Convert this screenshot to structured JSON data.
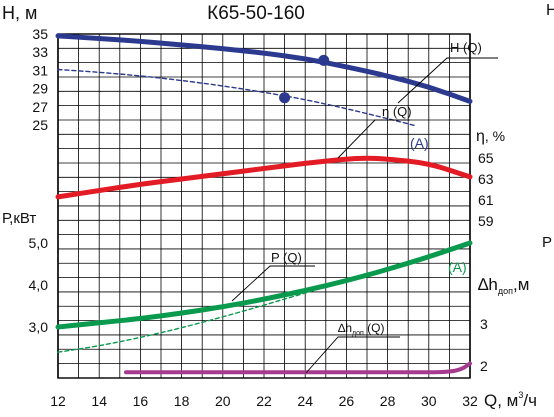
{
  "chart_data": {
    "type": "line",
    "title": "К65-50-160",
    "x_axis": {
      "label_main": "Q, м",
      "label_sup": "3",
      "label_tail": "/ч",
      "range": [
        12,
        32
      ],
      "ticks": [
        12,
        14,
        16,
        18,
        20,
        22,
        24,
        26,
        28,
        30,
        32
      ]
    },
    "axes": {
      "head": {
        "label": "H, м",
        "range": [
          25,
          35
        ],
        "ticks": [
          25,
          27,
          29,
          31,
          33,
          35
        ]
      },
      "efficiency": {
        "label_main": "η",
        "label_tail": ", %",
        "range": [
          59,
          65
        ],
        "ticks": [
          59,
          61,
          63,
          65
        ]
      },
      "power": {
        "label": "Р,кВт",
        "range": [
          3.0,
          5.0
        ],
        "ticks": [
          "3,0",
          "4,0",
          "5,0"
        ]
      },
      "npsh": {
        "label_main": "∆h",
        "label_sub": "доп",
        "label_tail": ",м",
        "ticks": [
          "2",
          "3"
        ]
      }
    },
    "series": [
      {
        "name": "H (Q)",
        "color": "#2b3a8f",
        "style": "solid",
        "x": [
          12,
          14,
          16,
          18,
          20,
          22,
          24,
          26,
          28,
          30,
          32
        ],
        "y": [
          34.8,
          34.5,
          34.2,
          33.8,
          33.4,
          32.9,
          32.3,
          31.4,
          30.4,
          29.2,
          27.6
        ]
      },
      {
        "name": "(A)",
        "color": "#2b3a8f",
        "style": "dashed",
        "x": [
          12,
          14,
          16,
          18,
          20,
          22,
          24,
          26,
          28,
          29.4
        ],
        "y": [
          31.1,
          30.8,
          30.4,
          29.9,
          29.3,
          28.6,
          27.8,
          26.8,
          25.7,
          24.9
        ]
      },
      {
        "name": "η (Q)",
        "color": "#e21b24",
        "style": "solid",
        "x": [
          12,
          14,
          16,
          18,
          20,
          22,
          24,
          26,
          27,
          28,
          30,
          32
        ],
        "y": [
          61.3,
          61.9,
          62.5,
          63.0,
          63.5,
          64.0,
          64.5,
          64.9,
          65.0,
          64.9,
          64.5,
          63.2
        ]
      },
      {
        "name": "P (Q)",
        "color": "#0a9a4e",
        "style": "solid",
        "x": [
          12,
          14,
          16,
          18,
          20,
          22,
          24,
          26,
          28,
          30,
          32
        ],
        "y": [
          3.0,
          3.1,
          3.2,
          3.33,
          3.48,
          3.66,
          3.87,
          4.1,
          4.37,
          4.67,
          5.0
        ]
      },
      {
        "name": "(A)",
        "color": "#0a9a4e",
        "style": "dashed",
        "x": [
          12,
          14,
          16,
          18,
          20,
          22,
          24,
          26,
          28,
          30,
          32
        ],
        "y": [
          2.4,
          2.55,
          2.75,
          2.98,
          3.24,
          3.52,
          3.81,
          4.1,
          4.4,
          4.7,
          5.0
        ]
      },
      {
        "name": "∆hдоп (Q)",
        "color": "#a63a8f",
        "style": "solid",
        "x": [
          15.3,
          18,
          20,
          22,
          24,
          26,
          28,
          30,
          31,
          31.6,
          32
        ],
        "y": [
          1.85,
          1.85,
          1.85,
          1.85,
          1.85,
          1.85,
          1.85,
          1.85,
          1.86,
          1.92,
          2.06
        ]
      }
    ],
    "markers": [
      {
        "series": "H (Q)",
        "x": 24.9,
        "y": 32.1
      },
      {
        "series": "(A)",
        "x": 23.0,
        "y": 28.0
      }
    ],
    "labels": {
      "H": "H (Q)",
      "eta_main": "η",
      "eta_tail": " (Q)",
      "P": "P (Q)",
      "npsh_main": "∆h",
      "npsh_sub": "доп",
      "npsh_tail": " (Q)",
      "A_blue": "(A)",
      "A_green": "(A)"
    },
    "cut_edge_text": [
      "Н",
      "Р"
    ],
    "grid": true
  }
}
